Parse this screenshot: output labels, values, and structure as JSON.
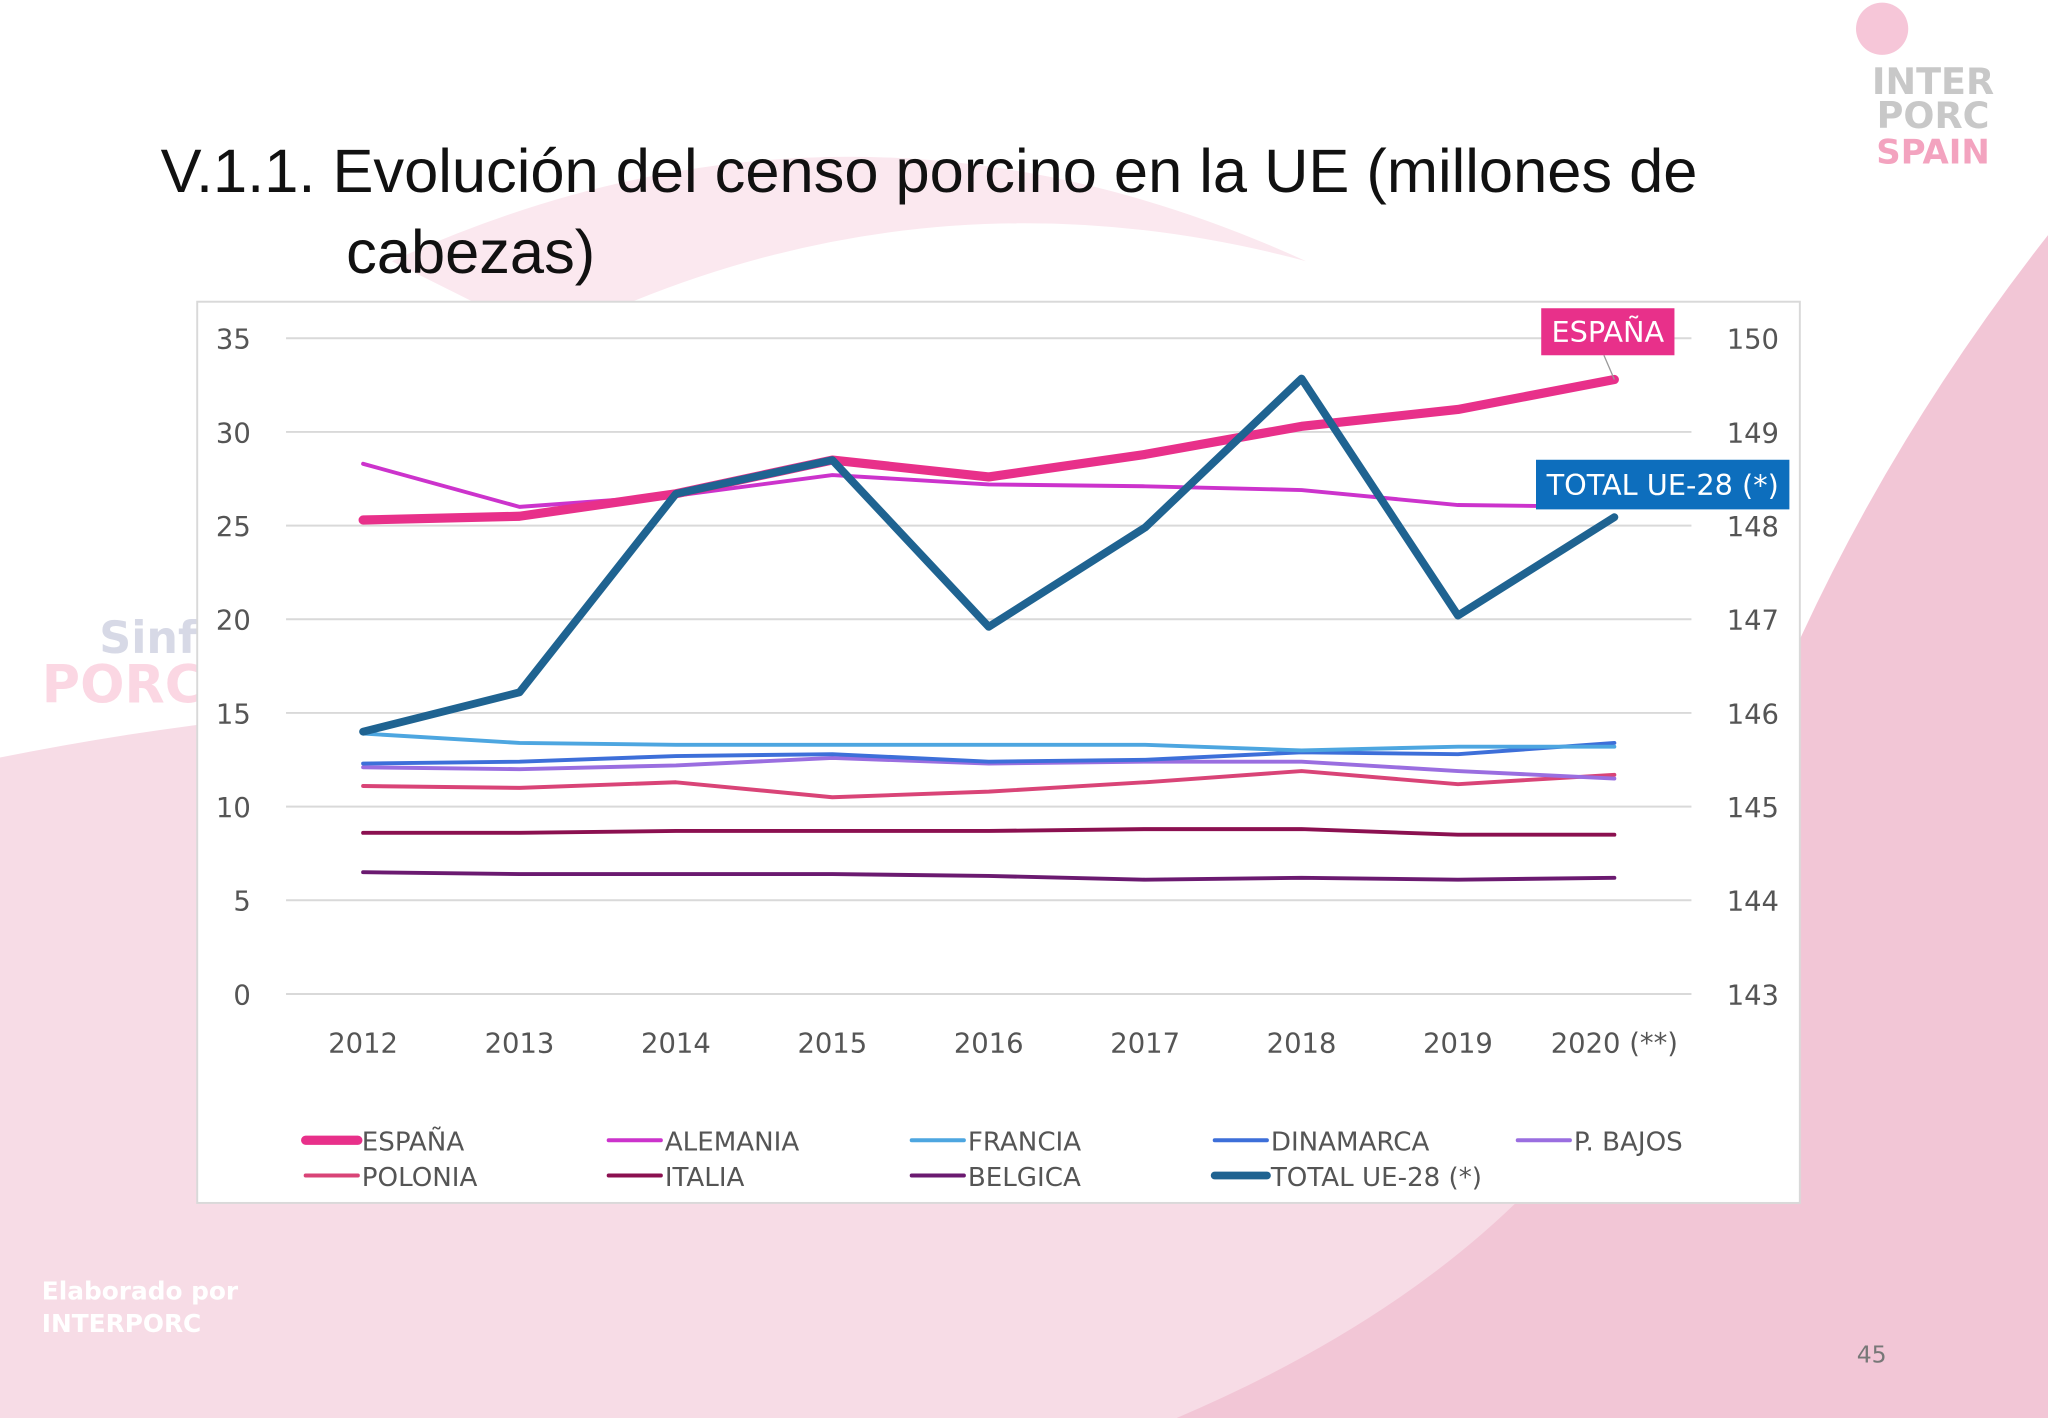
{
  "title": "V.1.1. Evolución del censo porcino en la UE (millones de cabezas)",
  "logo": [
    "INTER",
    "PORC",
    "SPAIN"
  ],
  "watermark": [
    "Sinfo",
    "PORC"
  ],
  "footer": [
    "Elaborado por",
    "INTERPORC"
  ],
  "page_number": "45",
  "chart_data": {
    "type": "line",
    "categories": [
      "2012",
      "2013",
      "2014",
      "2015",
      "2016",
      "2017",
      "2018",
      "2019",
      "2020 (**)"
    ],
    "ylim": [
      0,
      35
    ],
    "yticks": [
      0,
      5,
      10,
      15,
      20,
      25,
      30,
      35
    ],
    "y2lim": [
      143,
      150
    ],
    "y2ticks": [
      143,
      144,
      145,
      146,
      147,
      148,
      149,
      150
    ],
    "grid": true,
    "legend": "bottom",
    "series": [
      {
        "name": "ESPAÑA",
        "color": "#e8308a",
        "values": [
          25.3,
          25.5,
          26.7,
          28.5,
          27.6,
          28.8,
          30.3,
          31.2,
          32.8
        ]
      },
      {
        "name": "ALEMANIA",
        "color": "#cc33cc",
        "values": [
          28.3,
          26.0,
          26.6,
          27.7,
          27.2,
          27.1,
          26.9,
          26.1,
          26.0
        ]
      },
      {
        "name": "FRANCIA",
        "color": "#4da6e0",
        "values": [
          13.9,
          13.4,
          13.3,
          13.3,
          13.3,
          13.3,
          13.0,
          13.2,
          13.2
        ]
      },
      {
        "name": "DINAMARCA",
        "color": "#3d6fd9",
        "values": [
          12.3,
          12.4,
          12.7,
          12.8,
          12.4,
          12.5,
          12.9,
          12.8,
          13.4
        ]
      },
      {
        "name": "P. BAJOS",
        "color": "#9a6ee0",
        "values": [
          12.1,
          12.0,
          12.2,
          12.6,
          12.3,
          12.4,
          12.4,
          11.9,
          11.5
        ]
      },
      {
        "name": "POLONIA",
        "color": "#d94477",
        "values": [
          11.1,
          11.0,
          11.3,
          10.5,
          10.8,
          11.3,
          11.9,
          11.2,
          11.7
        ]
      },
      {
        "name": "ITALIA",
        "color": "#8b1050",
        "values": [
          8.6,
          8.6,
          8.7,
          8.7,
          8.7,
          8.8,
          8.8,
          8.5,
          8.5
        ]
      },
      {
        "name": "BELGICA",
        "color": "#6b1a70",
        "values": [
          6.5,
          6.4,
          6.4,
          6.4,
          6.3,
          6.1,
          6.2,
          6.1,
          6.2
        ]
      },
      {
        "name": "TOTAL UE-28 (*)",
        "color": "#1f6391",
        "axis": "y2",
        "values": [
          145.8,
          146.22,
          148.34,
          148.7,
          146.92,
          147.98,
          149.57,
          147.04,
          148.09
        ]
      }
    ],
    "annotations": [
      {
        "text": "ESPAÑA",
        "color": "#e8308a"
      },
      {
        "text": "TOTAL UE-28 (*)",
        "color": "#0d6ebd"
      }
    ]
  }
}
